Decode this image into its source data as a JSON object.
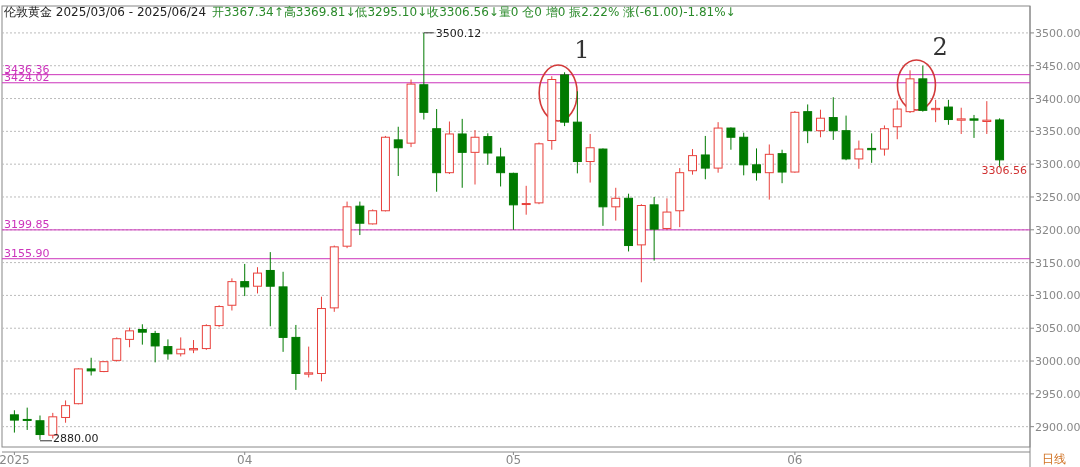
{
  "chart_data": {
    "type": "candlestick",
    "title": "伦敦黄金 2025/03/06 - 2025/06/24",
    "subtitle": "开3367.34↑高3369.81↓低3295.10↓收3306.56↓量0  仓0  增0 振2.22%  涨(-61.00)-1.81%↓",
    "categories": [
      "2025",
      null,
      null,
      null,
      null,
      null,
      null,
      null,
      null,
      null,
      null,
      null,
      null,
      null,
      null,
      null,
      null,
      null,
      "04",
      null,
      null,
      null,
      null,
      null,
      null,
      null,
      null,
      null,
      null,
      null,
      null,
      null,
      null,
      null,
      null,
      null,
      null,
      null,
      null,
      "05",
      null,
      null,
      null,
      null,
      null,
      null,
      null,
      null,
      null,
      null,
      null,
      null,
      null,
      null,
      null,
      null,
      null,
      null,
      null,
      null,
      null,
      "06",
      null,
      null,
      null,
      null,
      null,
      null,
      null,
      null,
      null,
      null,
      null,
      null,
      null,
      null,
      null,
      null
    ],
    "ohlc": [
      [
        2918,
        2925,
        2891,
        2910
      ],
      [
        2911,
        2929,
        2895,
        2910
      ],
      [
        2909,
        2917,
        2880,
        2888
      ],
      [
        2887,
        2921,
        2882,
        2915
      ],
      [
        2914,
        2940,
        2906,
        2932
      ],
      [
        2935,
        2989,
        2934,
        2988
      ],
      [
        2988,
        3005,
        2978,
        2985
      ],
      [
        2984,
        3000,
        2983,
        2999
      ],
      [
        3001,
        3036,
        2999,
        3034
      ],
      [
        3033,
        3051,
        3021,
        3046
      ],
      [
        3048,
        3056,
        3025,
        3044
      ],
      [
        3042,
        3046,
        2998,
        3023
      ],
      [
        3022,
        3033,
        3002,
        3011
      ],
      [
        3011,
        3036,
        3007,
        3018
      ],
      [
        3017,
        3032,
        3012,
        3019
      ],
      [
        3019,
        3056,
        3017,
        3054
      ],
      [
        3054,
        3085,
        3052,
        3083
      ],
      [
        3085,
        3126,
        3077,
        3121
      ],
      [
        3121,
        3148,
        3099,
        3113
      ],
      [
        3114,
        3143,
        3103,
        3134
      ],
      [
        3138,
        3166,
        3053,
        3114
      ],
      [
        3113,
        3136,
        3014,
        3036
      ],
      [
        3036,
        3055,
        2956,
        2981
      ],
      [
        2980,
        3022,
        2975,
        2982
      ],
      [
        2981,
        3098,
        2969,
        3080
      ],
      [
        3081,
        3176,
        3075,
        3174
      ],
      [
        3175,
        3243,
        3172,
        3235
      ],
      [
        3236,
        3243,
        3192,
        3210
      ],
      [
        3209,
        3231,
        3208,
        3229
      ],
      [
        3229,
        3343,
        3228,
        3341
      ],
      [
        3337,
        3357,
        3282,
        3325
      ],
      [
        3332,
        3429,
        3326,
        3422
      ],
      [
        3421,
        3500.12,
        3368,
        3379
      ],
      [
        3354,
        3384,
        3258,
        3287
      ],
      [
        3287,
        3365,
        3285,
        3346
      ],
      [
        3346,
        3369,
        3264,
        3318
      ],
      [
        3318,
        3352,
        3269,
        3341
      ],
      [
        3342,
        3347,
        3299,
        3317
      ],
      [
        3311,
        3325,
        3266,
        3287
      ],
      [
        3286,
        3287,
        3200,
        3238
      ],
      [
        3239,
        3267,
        3223,
        3240
      ],
      [
        3241,
        3333,
        3239,
        3331
      ],
      [
        3336,
        3434,
        3322,
        3429
      ],
      [
        3436,
        3440,
        3358,
        3364
      ],
      [
        3364,
        3411,
        3286,
        3304
      ],
      [
        3304,
        3346,
        3272,
        3325
      ],
      [
        3323,
        3324,
        3206,
        3235
      ],
      [
        3235,
        3264,
        3214,
        3248
      ],
      [
        3248,
        3255,
        3167,
        3176
      ],
      [
        3177,
        3239,
        3120,
        3237
      ],
      [
        3238,
        3250,
        3153,
        3201
      ],
      [
        3202,
        3248,
        3200,
        3227
      ],
      [
        3229,
        3294,
        3204,
        3287
      ],
      [
        3290,
        3323,
        3284,
        3313
      ],
      [
        3314,
        3343,
        3277,
        3294
      ],
      [
        3294,
        3364,
        3287,
        3355
      ],
      [
        3355,
        3356,
        3322,
        3341
      ],
      [
        3341,
        3348,
        3283,
        3299
      ],
      [
        3299,
        3324,
        3275,
        3287
      ],
      [
        3287,
        3330,
        3246,
        3315
      ],
      [
        3316,
        3322,
        3271,
        3288
      ],
      [
        3288,
        3381,
        3287,
        3379
      ],
      [
        3380,
        3391,
        3332,
        3351
      ],
      [
        3351,
        3383,
        3341,
        3370
      ],
      [
        3371,
        3402,
        3337,
        3351
      ],
      [
        3351,
        3374,
        3306,
        3308
      ],
      [
        3308,
        3336,
        3293,
        3323
      ],
      [
        3324,
        3347,
        3302,
        3322
      ],
      [
        3323,
        3359,
        3313,
        3354
      ],
      [
        3357,
        3397,
        3338,
        3384
      ],
      [
        3380,
        3443,
        3378,
        3430
      ],
      [
        3430,
        3450,
        3380,
        3382
      ],
      [
        3383,
        3398,
        3364,
        3385
      ],
      [
        3387,
        3398,
        3360,
        3368
      ],
      [
        3367,
        3386,
        3346,
        3369
      ],
      [
        3369,
        3375,
        3340,
        3367
      ],
      [
        3365,
        3396,
        3346,
        3367
      ],
      [
        3367.34,
        3369.81,
        3295.1,
        3306.56
      ]
    ],
    "ylim": [
      2869,
      3541
    ],
    "yticks": [
      {
        "value": 2900,
        "label": "2900.00"
      },
      {
        "value": 2950,
        "label": "2950.00"
      },
      {
        "value": 3000,
        "label": "3000.00"
      },
      {
        "value": 3050,
        "label": "3050.00"
      },
      {
        "value": 3100,
        "label": "3100.00"
      },
      {
        "value": 3150,
        "label": "3150.00"
      },
      {
        "value": 3200,
        "label": "3200.00"
      },
      {
        "value": 3250,
        "label": "3250.00"
      },
      {
        "value": 3300,
        "label": "3300.00"
      },
      {
        "value": 3350,
        "label": "3350.00"
      },
      {
        "value": 3400,
        "label": "3400.00"
      },
      {
        "value": 3450,
        "label": "3450.00"
      },
      {
        "value": 3500,
        "label": "3500.00"
      }
    ],
    "grid": "y",
    "ref_lines": [
      {
        "axis": "y",
        "value": 3436.36,
        "label": "3436.36",
        "color": "#cc33bb"
      },
      {
        "axis": "y",
        "value": 3424.02,
        "label": "3424.02",
        "color": "#cc33bb"
      },
      {
        "axis": "y",
        "value": 3199.85,
        "label": "3199.85",
        "color": "#cc33bb"
      },
      {
        "axis": "y",
        "value": 3155.9,
        "label": "3155.90",
        "color": "#cc33bb"
      }
    ],
    "annotations": [
      "3500.12",
      "2880.00",
      "3306.56",
      "1",
      "2",
      "日线"
    ]
  }
}
